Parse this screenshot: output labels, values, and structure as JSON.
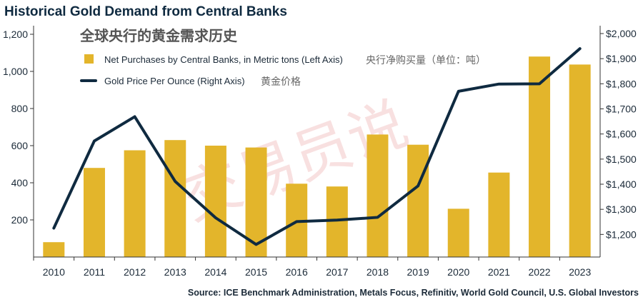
{
  "title": "Historical Gold Demand from Central Banks",
  "source": "Source: ICE Benchmark Administration, Metals Focus, Refinitiv, World Gold Council, U.S. Global Investors",
  "watermark_text": "交易员说",
  "colors": {
    "bar": "#e3b52b",
    "line": "#0f2a40",
    "axis": "#333333",
    "chinese_title": "#555555",
    "chinese_label": "#666666",
    "watermark": "#f3c8c8"
  },
  "chart_data": {
    "type": "bar+line",
    "title_cn": "全球央行的黄金需求历史",
    "categories": [
      "2010",
      "2011",
      "2012",
      "2013",
      "2014",
      "2015",
      "2016",
      "2017",
      "2018",
      "2019",
      "2020",
      "2021",
      "2022",
      "2023"
    ],
    "series": [
      {
        "name": "Net Purchases by Central Banks, in Metric tons (Left Axis)",
        "name_cn": "央行净购买量（单位：吨）",
        "type": "bar",
        "axis": "left",
        "values": [
          80,
          480,
          575,
          630,
          600,
          590,
          395,
          380,
          660,
          605,
          260,
          455,
          1080,
          1037
        ]
      },
      {
        "name": "Gold Price Per Ounce (Right Axis)",
        "name_cn": "黄金价格",
        "type": "line",
        "axis": "right",
        "values": [
          1225,
          1572,
          1669,
          1411,
          1266,
          1160,
          1251,
          1257,
          1268,
          1393,
          1770,
          1799,
          1800,
          1940
        ]
      }
    ],
    "left_axis": {
      "ylim": [
        0,
        1200
      ],
      "ticks": [
        200,
        400,
        600,
        800,
        1000,
        1200
      ],
      "tick_labels": [
        "200",
        "400",
        "600",
        "800",
        "1,000",
        "1,200"
      ]
    },
    "right_axis": {
      "ylim": [
        1110,
        2000
      ],
      "ticks": [
        1200,
        1300,
        1400,
        1500,
        1600,
        1700,
        1800,
        1900,
        2000
      ],
      "tick_labels": [
        "$1,200",
        "$1,300",
        "$1,400",
        "$1,500",
        "$1,600",
        "$1,700",
        "$1,800",
        "$1,900",
        "$2,000"
      ]
    },
    "grid": false,
    "legend_position": "top-left"
  }
}
